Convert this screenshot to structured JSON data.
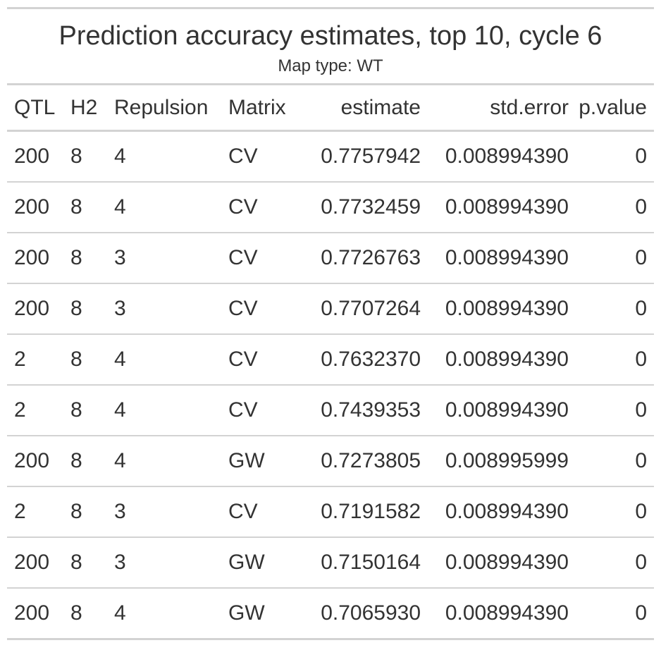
{
  "chart_data": {
    "type": "table",
    "title": "Prediction accuracy estimates, top 10, cycle 6",
    "subtitle": "Map type: WT",
    "columns": [
      "QTL",
      "H2",
      "Repulsion",
      "Matrix",
      "estimate",
      "std.error",
      "p.value"
    ],
    "rows": [
      [
        "200",
        "8",
        "4",
        "CV",
        "0.7757942",
        "0.008994390",
        "0"
      ],
      [
        "200",
        "8",
        "4",
        "CV",
        "0.7732459",
        "0.008994390",
        "0"
      ],
      [
        "200",
        "8",
        "3",
        "CV",
        "0.7726763",
        "0.008994390",
        "0"
      ],
      [
        "200",
        "8",
        "3",
        "CV",
        "0.7707264",
        "0.008994390",
        "0"
      ],
      [
        "2",
        "8",
        "4",
        "CV",
        "0.7632370",
        "0.008994390",
        "0"
      ],
      [
        "2",
        "8",
        "4",
        "CV",
        "0.7439353",
        "0.008994390",
        "0"
      ],
      [
        "200",
        "8",
        "4",
        "GW",
        "0.7273805",
        "0.008995999",
        "0"
      ],
      [
        "2",
        "8",
        "3",
        "CV",
        "0.7191582",
        "0.008994390",
        "0"
      ],
      [
        "200",
        "8",
        "3",
        "GW",
        "0.7150164",
        "0.008994390",
        "0"
      ],
      [
        "200",
        "8",
        "4",
        "GW",
        "0.7065930",
        "0.008994390",
        "0"
      ]
    ]
  },
  "colors": {
    "text": "#333333",
    "rule": "#d3d3d3",
    "background": "#ffffff"
  }
}
